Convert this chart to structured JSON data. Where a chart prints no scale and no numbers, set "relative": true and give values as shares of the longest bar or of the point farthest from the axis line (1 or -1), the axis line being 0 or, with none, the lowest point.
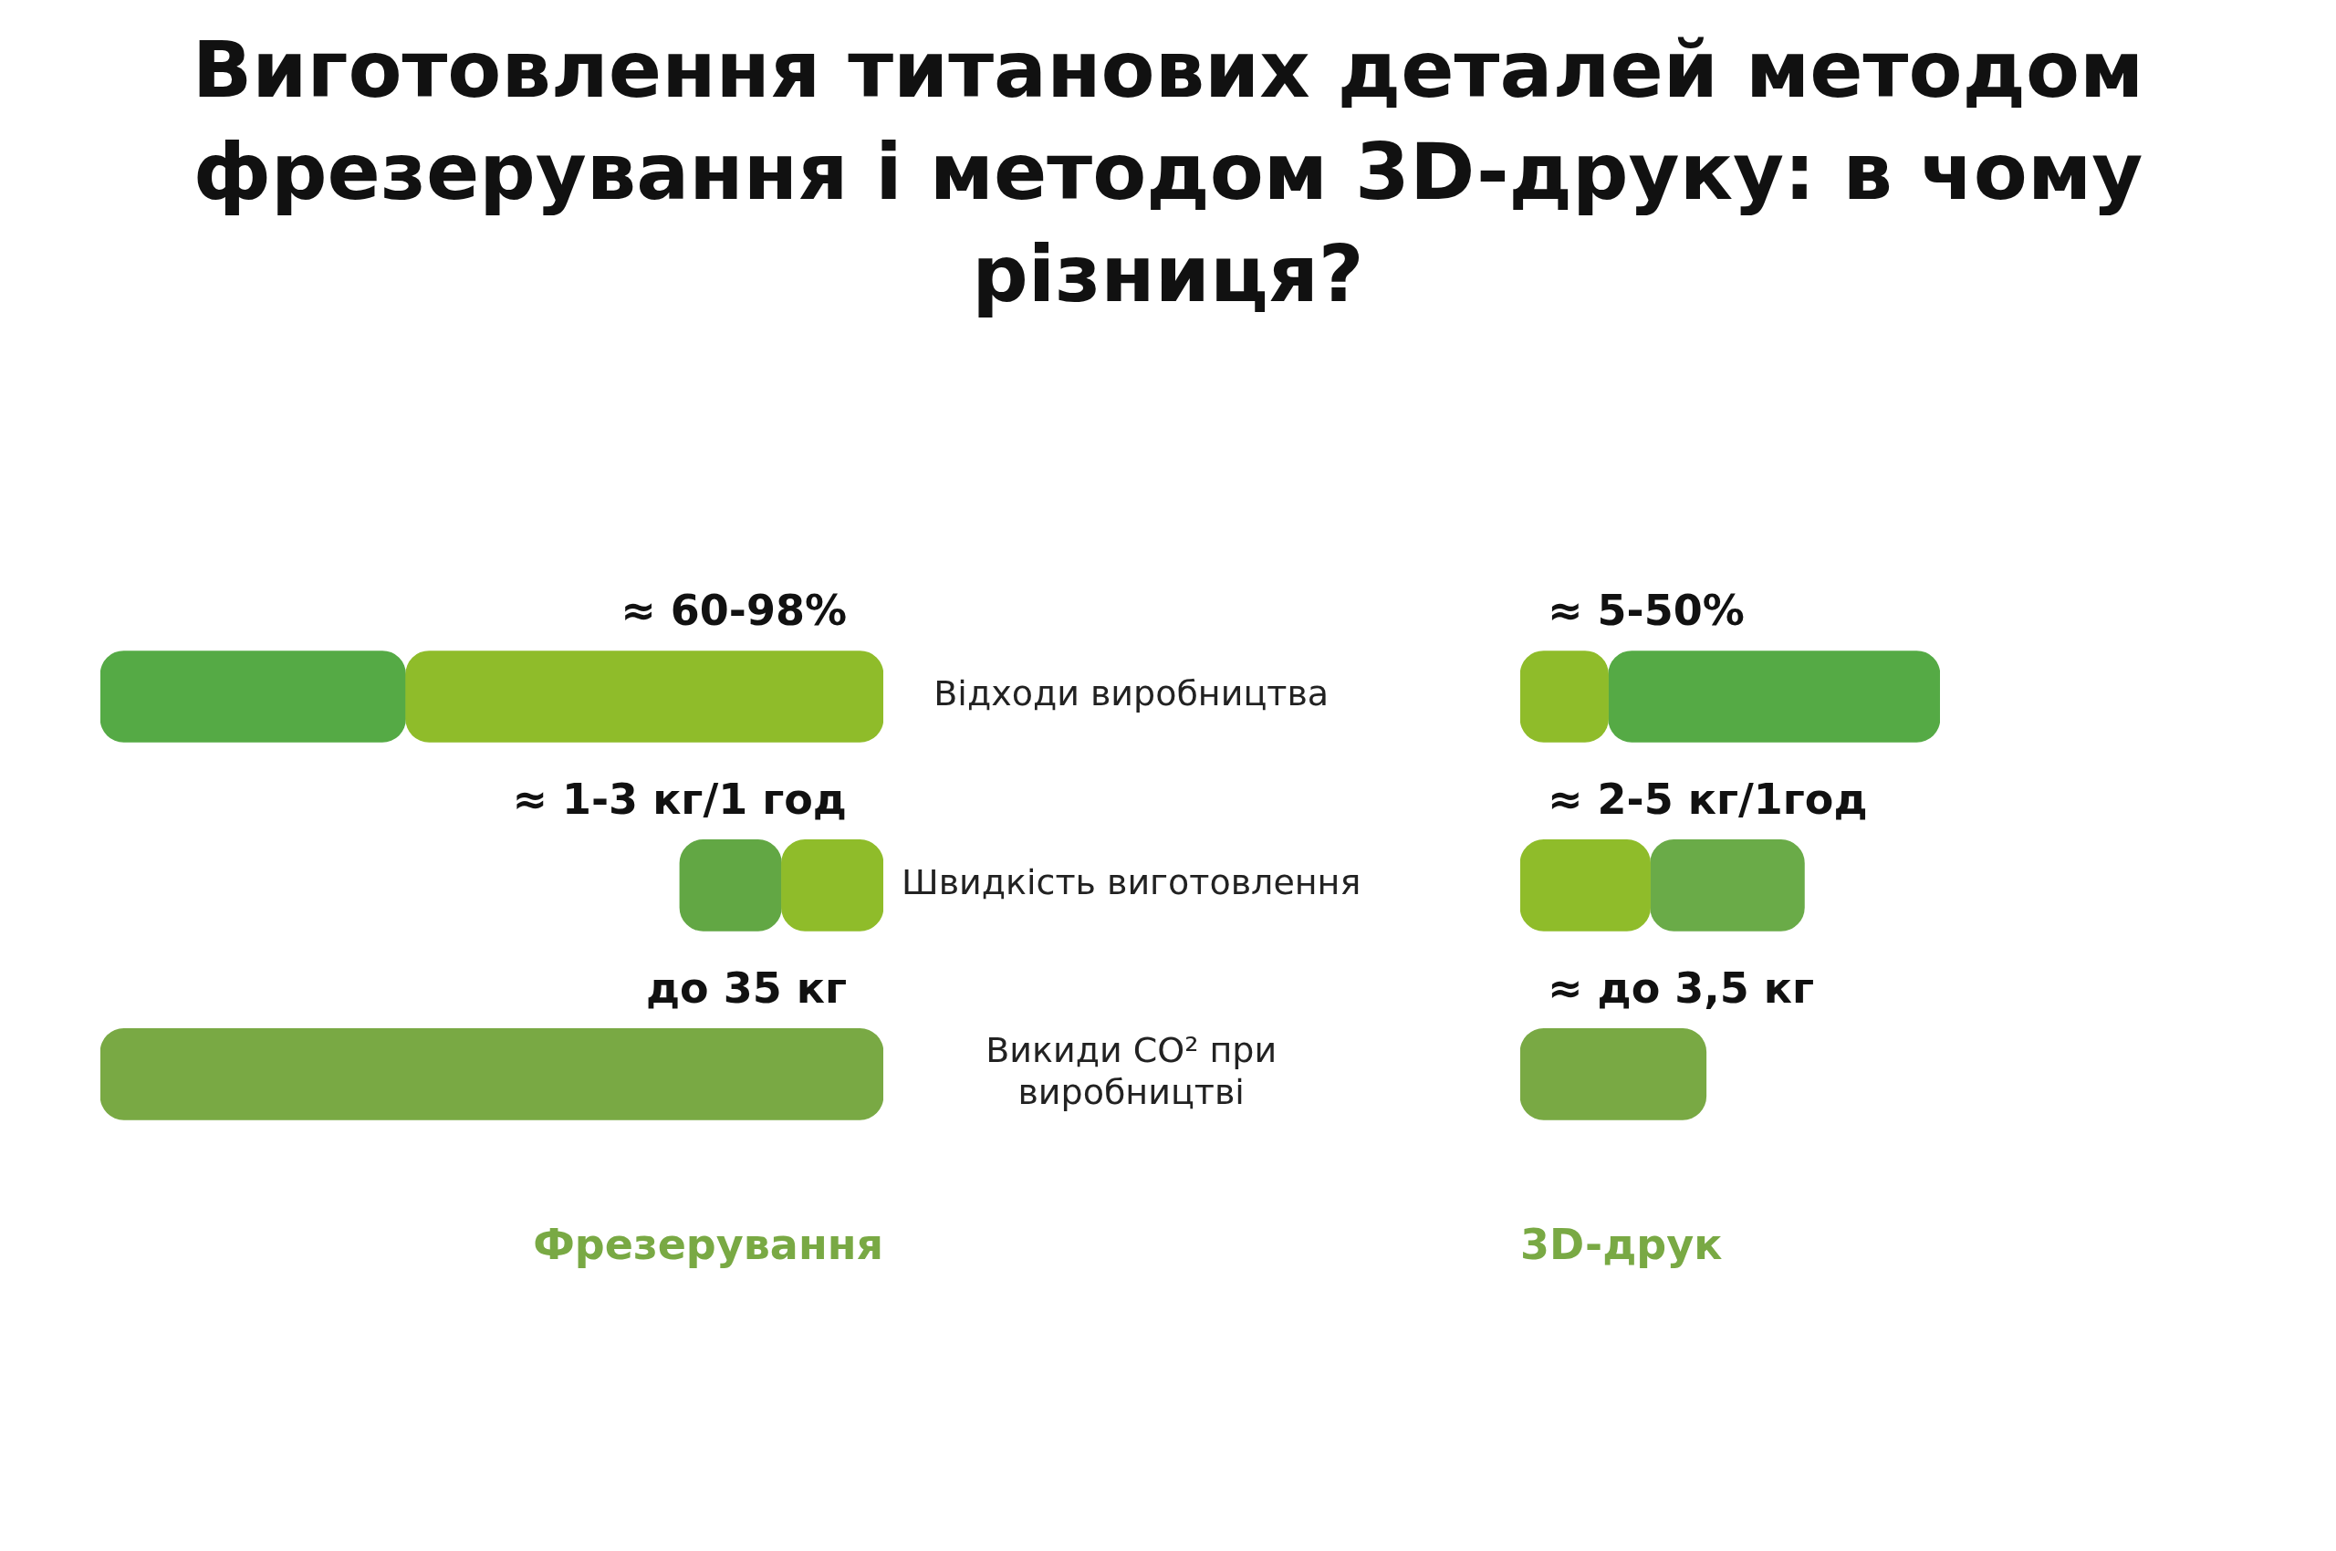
{
  "chart_data": [
    {
      "type": "bar",
      "title": "Виготовлення титанових деталей методом фрезерування і методом 3D-друку: в чому різниця?",
      "orientation": "horizontal",
      "stacked": true,
      "relative": true,
      "grid": false,
      "legend": false,
      "xlabel": "Фрезерування",
      "categories": [
        "Відходи виробництва",
        "Швидкість виготовлення",
        "Викиди CO² при виробництві"
      ],
      "series": [
        {
          "colors": [
            "#8fbc2a",
            "#8fbc2a",
            "#79a944"
          ],
          "values": [
            -0.61,
            -0.13,
            -1
          ]
        },
        {
          "colors": [
            "#55aa45",
            "#62a744",
            "#79a944"
          ],
          "values": [
            -0.39,
            -0.13,
            null
          ]
        }
      ],
      "annotations": [
        "≈ 60-98%",
        "≈ 1-3 кг/1 год",
        "до 35 кг"
      ]
    },
    {
      "type": "bar",
      "orientation": "horizontal",
      "stacked": true,
      "relative": true,
      "grid": false,
      "legend": false,
      "xlabel": "3D-друк",
      "categories": [
        null,
        null,
        null
      ],
      "series": [
        {
          "colors": [
            "#8fbc2a",
            "#8fbc2a",
            "#79a944"
          ],
          "values": [
            0.21,
            0.31,
            0.443
          ]
        },
        {
          "colors": [
            "#55aa45",
            "#6aab48",
            "#79a944"
          ],
          "values": [
            0.79,
            0.367,
            null
          ]
        }
      ],
      "annotations": [
        "≈ 5-50%",
        "≈ 2-5 кг/1год",
        "≈ до 3,5 кг"
      ]
    }
  ]
}
